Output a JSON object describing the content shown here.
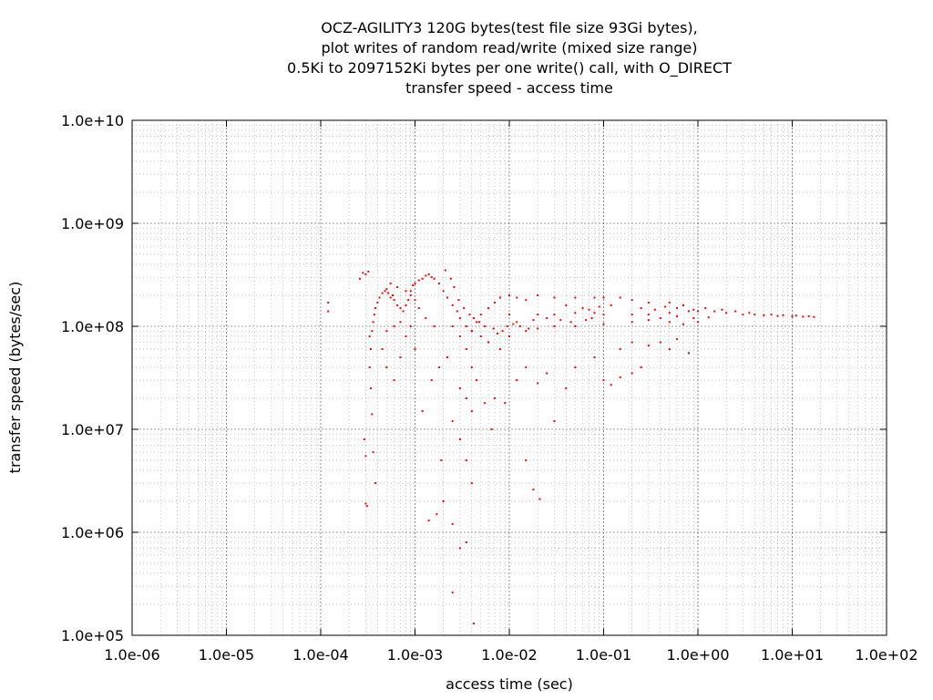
{
  "chart_data": {
    "type": "scatter",
    "title": [
      "OCZ-AGILITY3 120G bytes(test file size 93Gi bytes),",
      "plot writes of random read/write (mixed size range)",
      "0.5Ki to 2097152Ki bytes per one write() call, with O_DIRECT",
      "transfer speed - access time"
    ],
    "xlabel": "access time (sec)",
    "ylabel": "transfer speed (bytes/sec)",
    "xscale": "log",
    "yscale": "log",
    "xlim": [
      1e-06,
      100
    ],
    "ylim": [
      100000.0,
      10000000000.0
    ],
    "xticks": [
      "1.0e-06",
      "1.0e-05",
      "1.0e-04",
      "1.0e-03",
      "1.0e-02",
      "1.0e-01",
      "1.0e+00",
      "1.0e+01",
      "1.0e+02"
    ],
    "yticks": [
      "1.0e+05",
      "1.0e+06",
      "1.0e+07",
      "1.0e+08",
      "1.0e+09",
      "1.0e+10"
    ],
    "grid": true,
    "point_color": "#ff0000",
    "series": [
      {
        "points": [
          [
            0.00012,
            170000000.0
          ],
          [
            0.00012,
            140000000.0
          ],
          [
            0.00028,
            330000000.0
          ],
          [
            0.0003,
            320000000.0
          ],
          [
            0.00026,
            290000000.0
          ],
          [
            0.00032,
            340000000.0
          ],
          [
            0.0003,
            1900000.0
          ],
          [
            0.00031,
            1800000.0
          ],
          [
            0.00029,
            8000000.0
          ],
          [
            0.0003,
            5500000.0
          ],
          [
            0.00033,
            40000000.0
          ],
          [
            0.00034,
            25000000.0
          ],
          [
            0.00035,
            14000000.0
          ],
          [
            0.00036,
            6000000.0
          ],
          [
            0.00038,
            3000000.0
          ],
          [
            0.00033,
            80000000.0
          ],
          [
            0.00034,
            60000000.0
          ],
          [
            0.00035,
            90000000.0
          ],
          [
            0.00036,
            110000000.0
          ],
          [
            0.00037,
            130000000.0
          ],
          [
            0.00038,
            150000000.0
          ],
          [
            0.0004,
            170000000.0
          ],
          [
            0.00042,
            190000000.0
          ],
          [
            0.00045,
            210000000.0
          ],
          [
            0.00048,
            220000000.0
          ],
          [
            0.0005,
            230000000.0
          ],
          [
            0.00052,
            210000000.0
          ],
          [
            0.00055,
            190000000.0
          ],
          [
            0.00058,
            200000000.0
          ],
          [
            0.0006,
            180000000.0
          ],
          [
            0.00065,
            160000000.0
          ],
          [
            0.0007,
            150000000.0
          ],
          [
            0.00075,
            140000000.0
          ],
          [
            0.0008,
            160000000.0
          ],
          [
            0.00085,
            180000000.0
          ],
          [
            0.0009,
            220000000.0
          ],
          [
            0.00095,
            250000000.0
          ],
          [
            0.001,
            260000000.0
          ],
          [
            0.0011,
            280000000.0
          ],
          [
            0.0012,
            290000000.0
          ],
          [
            0.0013,
            310000000.0
          ],
          [
            0.0014,
            320000000.0
          ],
          [
            0.0015,
            300000000.0
          ],
          [
            0.0016,
            290000000.0
          ],
          [
            0.0018,
            260000000.0
          ],
          [
            0.002,
            220000000.0
          ],
          [
            0.0022,
            190000000.0
          ],
          [
            0.0025,
            160000000.0
          ],
          [
            0.0028,
            140000000.0
          ],
          [
            0.003,
            120000000.0
          ],
          [
            0.0035,
            100000000.0
          ],
          [
            0.004,
            90000000.0
          ],
          [
            0.0045,
            110000000.0
          ],
          [
            0.005,
            130000000.0
          ],
          [
            0.006,
            150000000.0
          ],
          [
            0.007,
            170000000.0
          ],
          [
            0.008,
            190000000.0
          ],
          [
            0.01,
            200000000.0
          ],
          [
            0.012,
            190000000.0
          ],
          [
            0.015,
            180000000.0
          ],
          [
            0.02,
            200000000.0
          ],
          [
            0.03,
            190000000.0
          ],
          [
            0.05,
            190000000.0
          ],
          [
            0.08,
            190000000.0
          ],
          [
            0.1,
            190000000.0
          ],
          [
            0.15,
            190000000.0
          ],
          [
            0.2,
            180000000.0
          ],
          [
            0.3,
            170000000.0
          ],
          [
            0.5,
            170000000.0
          ],
          [
            0.7,
            160000000.0
          ],
          [
            0.01,
            130000000.0
          ],
          [
            0.02,
            130000000.0
          ],
          [
            0.03,
            130000000.0
          ],
          [
            0.05,
            135000000.0
          ],
          [
            0.08,
            135000000.0
          ],
          [
            0.1,
            130000000.0
          ],
          [
            0.2,
            130000000.0
          ],
          [
            0.3,
            130000000.0
          ],
          [
            0.5,
            135000000.0
          ],
          [
            0.8,
            140000000.0
          ],
          [
            1.0,
            140000000.0
          ],
          [
            1.5,
            140000000.0
          ],
          [
            2.0,
            135000000.0
          ],
          [
            3.0,
            130000000.0
          ],
          [
            4.0,
            130000000.0
          ],
          [
            5.0,
            128000000.0
          ],
          [
            7.0,
            126000000.0
          ],
          [
            10.0,
            125000000.0
          ],
          [
            13.0,
            124000000.0
          ],
          [
            17.0,
            123000000.0
          ],
          [
            0.004,
            90000000.0
          ],
          [
            0.005,
            80000000.0
          ],
          [
            0.006,
            70000000.0
          ],
          [
            0.008,
            60000000.0
          ],
          [
            0.01,
            80000000.0
          ],
          [
            0.015,
            90000000.0
          ],
          [
            0.02,
            95000000.0
          ],
          [
            0.03,
            100000000.0
          ],
          [
            0.05,
            100000000.0
          ],
          [
            0.1,
            105000000.0
          ],
          [
            0.2,
            110000000.0
          ],
          [
            0.3,
            115000000.0
          ],
          [
            0.5,
            110000000.0
          ],
          [
            0.7,
            105000000.0
          ],
          [
            1.0,
            110000000.0
          ],
          [
            0.0025,
            100000000.0
          ],
          [
            0.003,
            80000000.0
          ],
          [
            0.0035,
            60000000.0
          ],
          [
            0.004,
            40000000.0
          ],
          [
            0.0045,
            30000000.0
          ],
          [
            0.003,
            25000000.0
          ],
          [
            0.0035,
            20000000.0
          ],
          [
            0.004,
            15000000.0
          ],
          [
            0.0025,
            12000000.0
          ],
          [
            0.003,
            8000000.0
          ],
          [
            0.0035,
            5000000.0
          ],
          [
            0.004,
            3000000.0
          ],
          [
            0.002,
            2000000.0
          ],
          [
            0.0025,
            1200000.0
          ],
          [
            0.003,
            700000.0
          ],
          [
            0.0025,
            260000.0
          ],
          [
            0.0042,
            130000.0
          ],
          [
            0.0035,
            800000.0
          ],
          [
            0.0017,
            1500000.0
          ],
          [
            0.0014,
            1300000.0
          ],
          [
            0.0019,
            5000000.0
          ],
          [
            0.0012,
            15000000.0
          ],
          [
            0.0015,
            30000000.0
          ],
          [
            0.0018,
            40000000.0
          ],
          [
            0.0022,
            50000000.0
          ],
          [
            0.001,
            60000000.0
          ],
          [
            0.0008,
            80000000.0
          ],
          [
            0.0007,
            50000000.0
          ],
          [
            0.0006,
            30000000.0
          ],
          [
            0.0005,
            40000000.0
          ],
          [
            0.00045,
            60000000.0
          ],
          [
            0.0005,
            90000000.0
          ],
          [
            0.0006,
            100000000.0
          ],
          [
            0.0007,
            110000000.0
          ],
          [
            0.0009,
            100000000.0
          ],
          [
            0.015,
            5000000.0
          ],
          [
            0.018,
            2600000.0
          ],
          [
            0.021,
            2100000.0
          ],
          [
            0.012,
            30000000.0
          ],
          [
            0.015,
            40000000.0
          ],
          [
            0.02,
            28000000.0
          ],
          [
            0.025,
            35000000.0
          ],
          [
            0.03,
            12000000.0
          ],
          [
            0.04,
            25000000.0
          ],
          [
            0.05,
            40000000.0
          ],
          [
            0.08,
            50000000.0
          ],
          [
            0.1,
            30000000.0
          ],
          [
            0.12,
            27000000.0
          ],
          [
            0.15,
            32000000.0
          ],
          [
            0.2,
            35000000.0
          ],
          [
            0.25,
            40000000.0
          ],
          [
            0.15,
            60000000.0
          ],
          [
            0.2,
            70000000.0
          ],
          [
            0.3,
            65000000.0
          ],
          [
            0.4,
            70000000.0
          ],
          [
            0.5,
            60000000.0
          ],
          [
            0.6,
            75000000.0
          ],
          [
            0.8,
            55000000.0
          ],
          [
            0.007,
            20000000.0
          ],
          [
            0.009,
            18000000.0
          ],
          [
            0.0065,
            10000000.0
          ],
          [
            0.0055,
            18000000.0
          ],
          [
            0.0016,
            100000000.0
          ],
          [
            0.0013,
            120000000.0
          ],
          [
            0.0011,
            150000000.0
          ],
          [
            0.001,
            180000000.0
          ],
          [
            0.0009,
            200000000.0
          ],
          [
            0.0008,
            220000000.0
          ],
          [
            0.00065,
            240000000.0
          ],
          [
            0.00055,
            260000000.0
          ],
          [
            0.04,
            160000000.0
          ],
          [
            0.06,
            150000000.0
          ],
          [
            0.07,
            145000000.0
          ],
          [
            0.09,
            155000000.0
          ],
          [
            0.12,
            160000000.0
          ],
          [
            0.25,
            150000000.0
          ],
          [
            0.35,
            145000000.0
          ],
          [
            0.45,
            155000000.0
          ],
          [
            0.6,
            150000000.0
          ],
          [
            0.9,
            145000000.0
          ],
          [
            1.2,
            150000000.0
          ],
          [
            1.8,
            145000000.0
          ],
          [
            2.5,
            140000000.0
          ],
          [
            3.5,
            135000000.0
          ],
          [
            6.0,
            130000000.0
          ],
          [
            8.0,
            128000000.0
          ],
          [
            11.0,
            127000000.0
          ],
          [
            15.0,
            125000000.0
          ],
          [
            0.012,
            110000000.0
          ],
          [
            0.018,
            115000000.0
          ],
          [
            0.025,
            120000000.0
          ],
          [
            0.035,
            115000000.0
          ],
          [
            0.045,
            110000000.0
          ],
          [
            0.065,
            115000000.0
          ],
          [
            0.075,
            120000000.0
          ],
          [
            0.4,
            120000000.0
          ],
          [
            0.6,
            125000000.0
          ],
          [
            0.9,
            120000000.0
          ],
          [
            1.3,
            122000000.0
          ],
          [
            0.0021,
            350000000.0
          ],
          [
            0.0024,
            290000000.0
          ],
          [
            0.0026,
            240000000.0
          ],
          [
            0.0029,
            180000000.0
          ],
          [
            0.0033,
            150000000.0
          ],
          [
            0.0038,
            130000000.0
          ],
          [
            0.0042,
            120000000.0
          ],
          [
            0.0048,
            110000000.0
          ],
          [
            0.0055,
            100000000.0
          ],
          [
            0.0068,
            95000000.0
          ],
          [
            0.0075,
            85000000.0
          ],
          [
            0.0085,
            90000000.0
          ],
          [
            0.0095,
            100000000.0
          ],
          [
            0.011,
            105000000.0
          ],
          [
            0.013,
            100000000.0
          ],
          [
            0.016,
            95000000.0
          ]
        ]
      }
    ]
  }
}
